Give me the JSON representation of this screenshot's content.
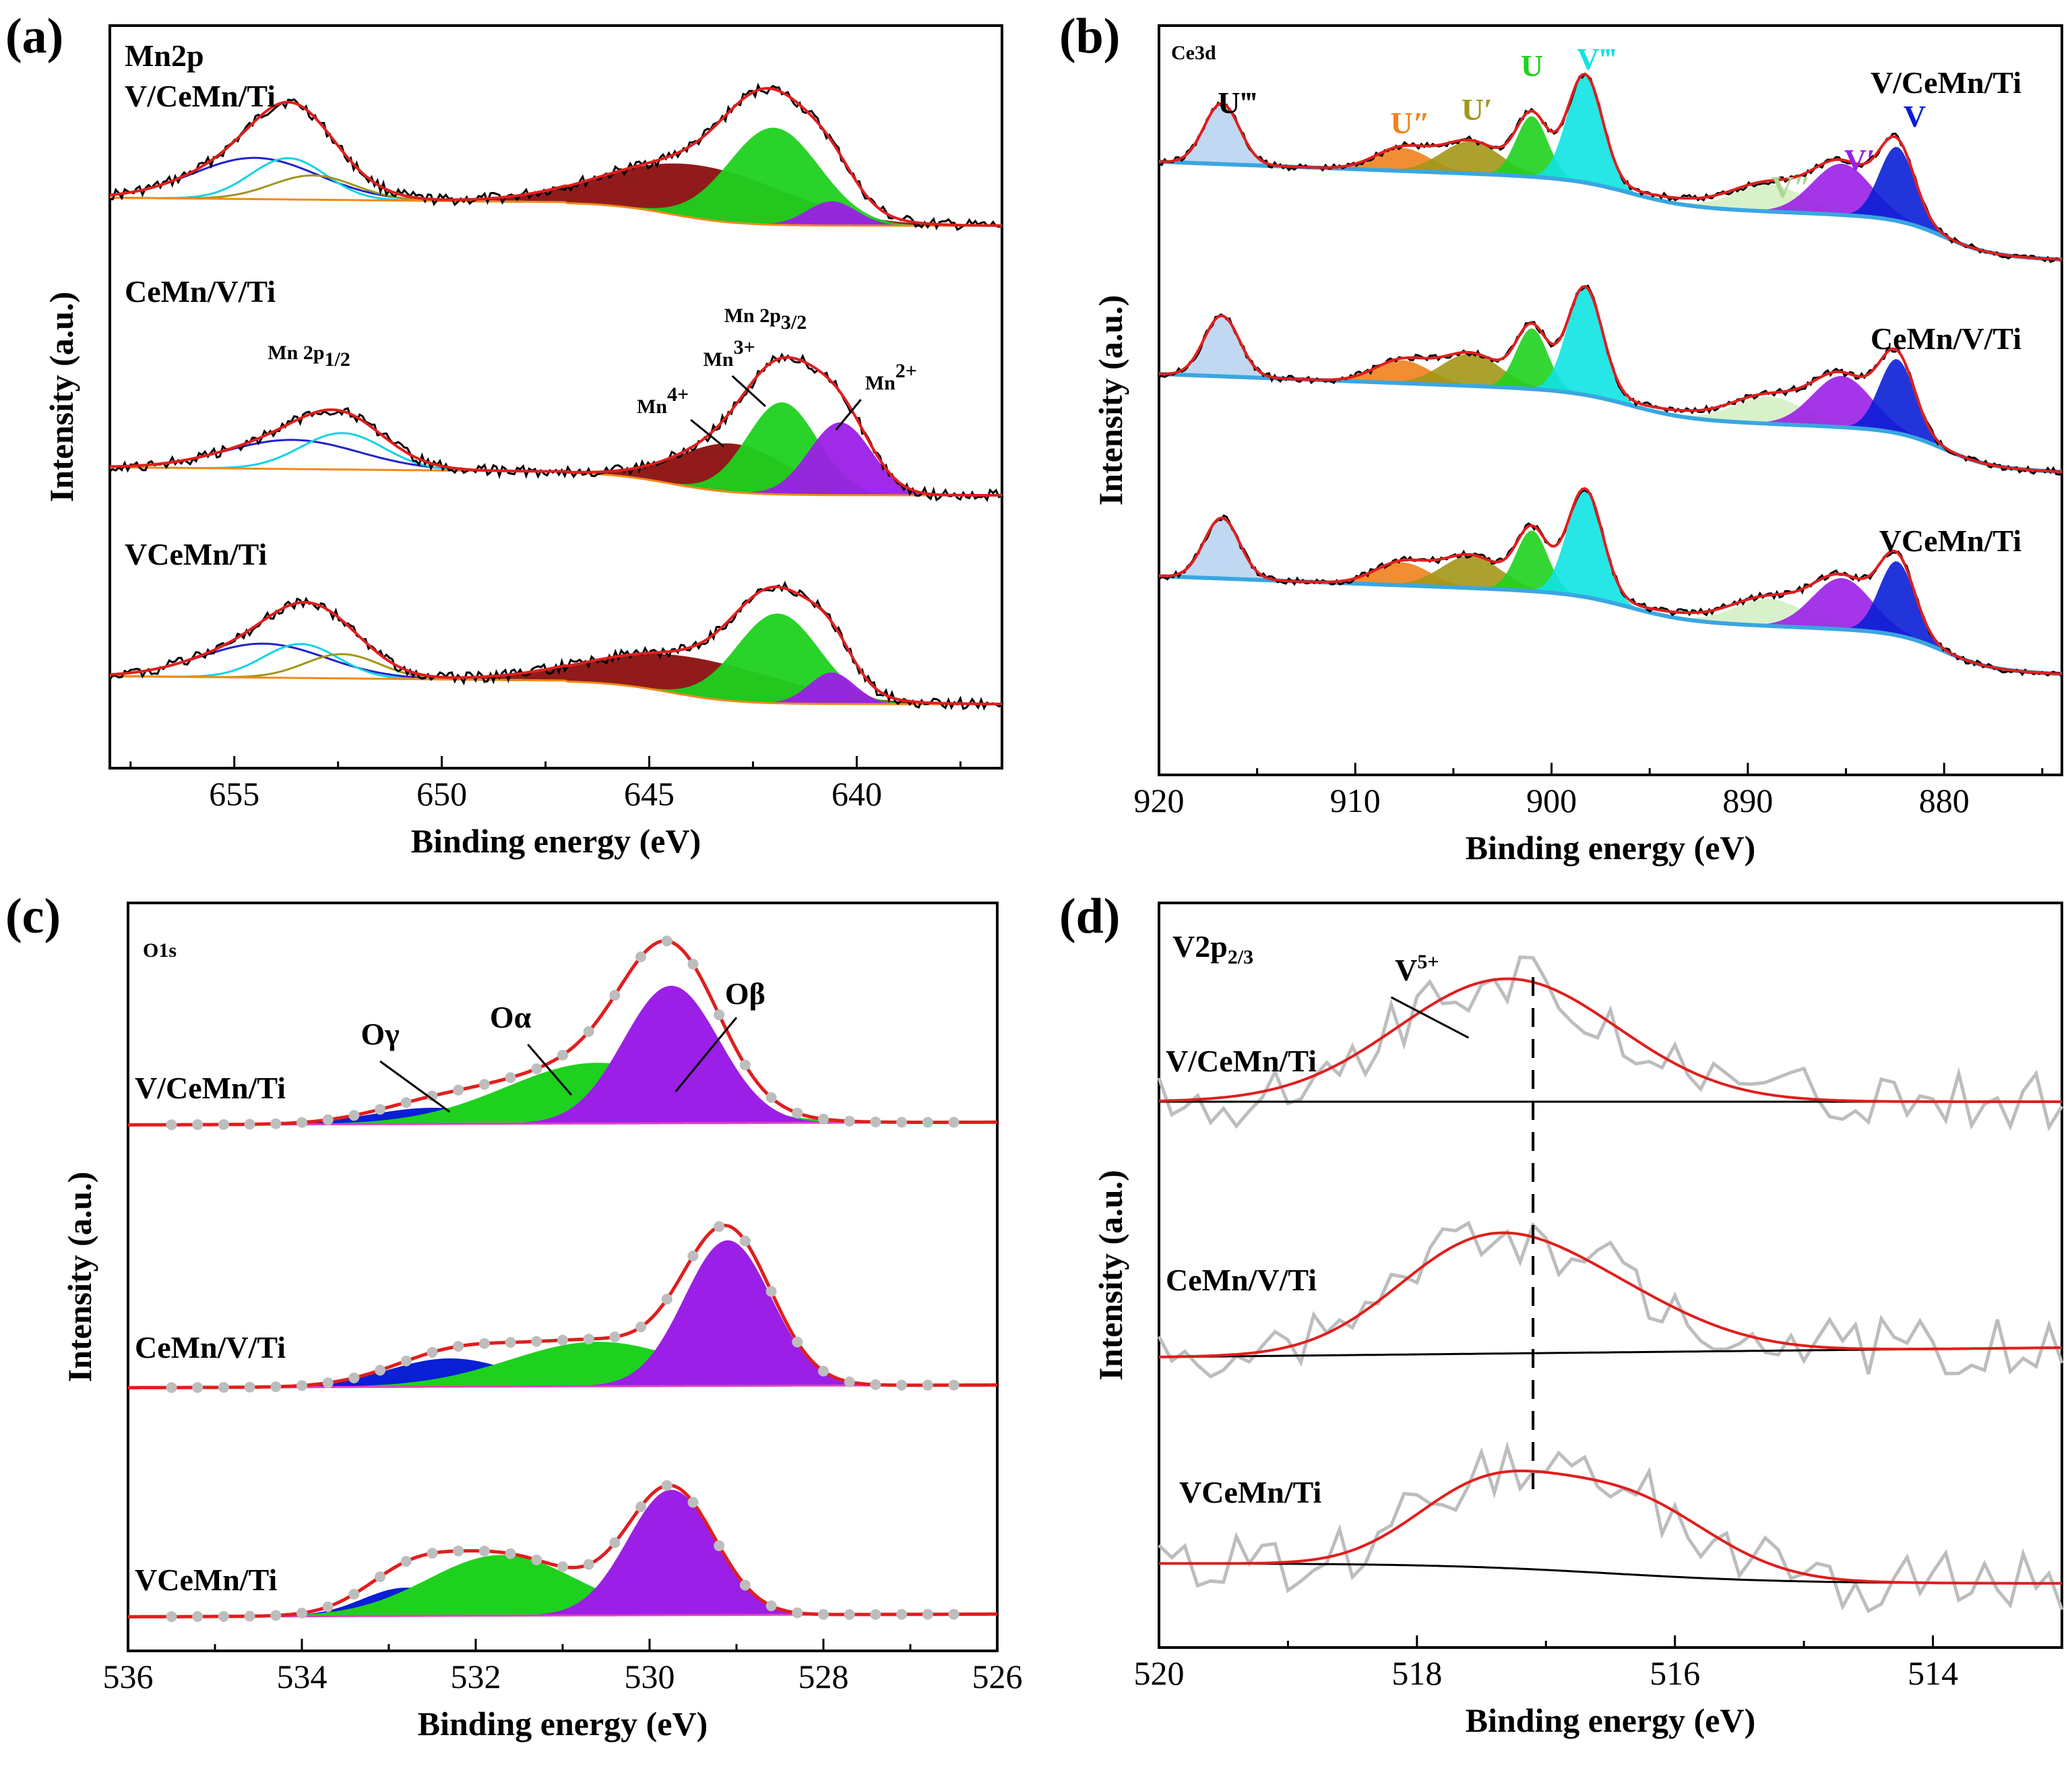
{
  "panel_labels": [
    "(a)",
    "(b)",
    "(c)",
    "(d)"
  ],
  "chart_data": [
    {
      "panel": "(a)",
      "type": "line",
      "title": "Mn2p",
      "xlabel": "Binding energy (eV)",
      "ylabel": "Intensity (a.u.)",
      "xlim": [
        658,
        636.5
      ],
      "xticks": [
        655,
        650,
        645,
        640
      ],
      "samples": [
        "V/CeMn/Ti",
        "CeMn/V/Ti",
        "VCeMn/Ti"
      ],
      "peak_labels": {
        "p12": "Mn 2p1/2",
        "p32": "Mn 2p3/2",
        "mn4": "Mn4+",
        "mn3": "Mn3+",
        "mn2": "Mn2+"
      },
      "components": [
        {
          "name": "Mn4+",
          "color": "#8b0f0f"
        },
        {
          "name": "Mn3+",
          "color": "#1ed11e"
        },
        {
          "name": "Mn2+",
          "color": "#9b1fe6"
        }
      ],
      "series": [
        {
          "name": "V/CeMn/Ti",
          "offset": 1.1,
          "peaks": [
            {
              "c": 654.5,
              "h": 0.17,
              "w": 1.5
            },
            {
              "c": 653.7,
              "h": 0.17,
              "w": 0.9
            },
            {
              "c": 653.1,
              "h": 0.1,
              "w": 1.0
            },
            {
              "c": 643.8,
              "h": 0.22,
              "w": 2.1
            },
            {
              "c": 642.0,
              "h": 0.4,
              "w": 1.1
            },
            {
              "c": 640.6,
              "h": 0.1,
              "w": 0.6
            }
          ]
        },
        {
          "name": "CeMn/V/Ti",
          "offset": 0.0,
          "peaks": [
            {
              "c": 653.6,
              "h": 0.12,
              "w": 1.6
            },
            {
              "c": 652.4,
              "h": 0.15,
              "w": 1.0
            },
            {
              "c": 643.0,
              "h": 0.2,
              "w": 1.3
            },
            {
              "c": 641.8,
              "h": 0.38,
              "w": 0.85
            },
            {
              "c": 640.4,
              "h": 0.3,
              "w": 0.75
            }
          ]
        },
        {
          "name": "VCeMn/Ti",
          "offset": -1.05,
          "peaks": [
            {
              "c": 654.3,
              "h": 0.14,
              "w": 1.5
            },
            {
              "c": 653.4,
              "h": 0.14,
              "w": 0.9
            },
            {
              "c": 652.4,
              "h": 0.1,
              "w": 0.9
            },
            {
              "c": 644.0,
              "h": 0.16,
              "w": 2.2
            },
            {
              "c": 641.9,
              "h": 0.37,
              "w": 1.0
            },
            {
              "c": 640.6,
              "h": 0.13,
              "w": 0.55
            }
          ]
        }
      ]
    },
    {
      "panel": "(b)",
      "type": "line",
      "title": "Ce3d",
      "xlabel": "Binding energy (eV)",
      "ylabel": "Intensity (a.u.)",
      "xlim": [
        920,
        874
      ],
      "xticks": [
        920,
        910,
        900,
        890,
        880
      ],
      "samples": [
        "V/CeMn/Ti",
        "CeMn/V/Ti",
        "VCeMn/Ti"
      ],
      "components": [
        {
          "name": "U‴",
          "center": 916.8,
          "color": "#b9d4ef"
        },
        {
          "name": "U″",
          "center": 907.6,
          "color": "#f0821e"
        },
        {
          "name": "U′",
          "center": 904.1,
          "color": "#a39618"
        },
        {
          "name": "U",
          "center": 901.0,
          "color": "#1ed11e"
        },
        {
          "name": "V‴",
          "center": 898.3,
          "color": "#0fe3e3"
        },
        {
          "name": "V″",
          "center": 888.9,
          "color": "#d4f0c4"
        },
        {
          "name": "V′",
          "center": 885.2,
          "color": "#9b1fe6"
        },
        {
          "name": "V",
          "center": 882.4,
          "color": "#0a1fd6"
        }
      ],
      "series": [
        {
          "name": "V/CeMn/Ti",
          "offset": 1.0,
          "heights": [
            0.45,
            0.17,
            0.24,
            0.45,
            0.8,
            0.2,
            0.38,
            0.55
          ]
        },
        {
          "name": "CeMn/V/Ti",
          "offset": 0.0,
          "heights": [
            0.45,
            0.17,
            0.24,
            0.45,
            0.8,
            0.2,
            0.38,
            0.55
          ]
        },
        {
          "name": "VCeMn/Ti",
          "offset": -1.0,
          "heights": [
            0.45,
            0.17,
            0.24,
            0.45,
            0.8,
            0.2,
            0.38,
            0.55
          ]
        }
      ]
    },
    {
      "panel": "(c)",
      "type": "line",
      "title": "O1s",
      "xlabel": "Binding energy (eV)",
      "ylabel": "Intensity (a.u.)",
      "xlim": [
        536,
        526
      ],
      "xticks": [
        536,
        534,
        532,
        530,
        528,
        526
      ],
      "samples": [
        "V/CeMn/Ti",
        "CeMn/V/Ti",
        "VCeMn/Ti"
      ],
      "components": [
        {
          "name": "Oγ",
          "color": "#0a1fd6"
        },
        {
          "name": "Oα",
          "color": "#1ed11e"
        },
        {
          "name": "Oβ",
          "color": "#9b1fe6"
        }
      ],
      "series": [
        {
          "name": "V/CeMn/Ti",
          "offset": 1.0,
          "peaks": [
            {
              "c": 532.5,
              "h": 0.08,
              "w": 0.7
            },
            {
              "c": 530.6,
              "h": 0.3,
              "w": 1.05
            },
            {
              "c": 529.75,
              "h": 0.68,
              "w": 0.55
            }
          ]
        },
        {
          "name": "CeMn/V/Ti",
          "offset": 0.0,
          "peaks": [
            {
              "c": 532.3,
              "h": 0.14,
              "w": 0.7
            },
            {
              "c": 530.6,
              "h": 0.22,
              "w": 1.0
            },
            {
              "c": 529.1,
              "h": 0.72,
              "w": 0.5
            }
          ]
        },
        {
          "name": "VCeMn/Ti",
          "offset": -1.0,
          "peaks": [
            {
              "c": 532.8,
              "h": 0.14,
              "w": 0.5
            },
            {
              "c": 531.7,
              "h": 0.3,
              "w": 0.85
            },
            {
              "c": 529.75,
              "h": 0.62,
              "w": 0.5
            }
          ]
        }
      ]
    },
    {
      "panel": "(d)",
      "type": "line",
      "title": "V2p2/3",
      "xlabel": "Binding energy (eV)",
      "ylabel": "Intensity (a.u.)",
      "xlim": [
        520,
        513
      ],
      "xticks": [
        520,
        518,
        516,
        514
      ],
      "samples": [
        "V/CeMn/Ti",
        "CeMn/V/Ti",
        "VCeMn/Ti"
      ],
      "annotation": {
        "text": "V5+",
        "dashed_line_at": 517.1
      },
      "series": [
        {
          "name": "V/CeMn/Ti",
          "offset": 1.0,
          "peaks": [
            {
              "c": 517.3,
              "h": 0.48,
              "w": 0.85
            }
          ]
        },
        {
          "name": "CeMn/V/Ti",
          "offset": 0.0,
          "peaks": [
            {
              "c": 517.6,
              "h": 0.33,
              "w": 0.65
            },
            {
              "c": 516.7,
              "h": 0.24,
              "w": 0.75
            }
          ]
        },
        {
          "name": "VCeMn/Ti",
          "offset": -1.0,
          "peaks": [
            {
              "c": 517.5,
              "h": 0.28,
              "w": 0.55
            },
            {
              "c": 516.4,
              "h": 0.3,
              "w": 0.65
            }
          ]
        }
      ]
    }
  ]
}
